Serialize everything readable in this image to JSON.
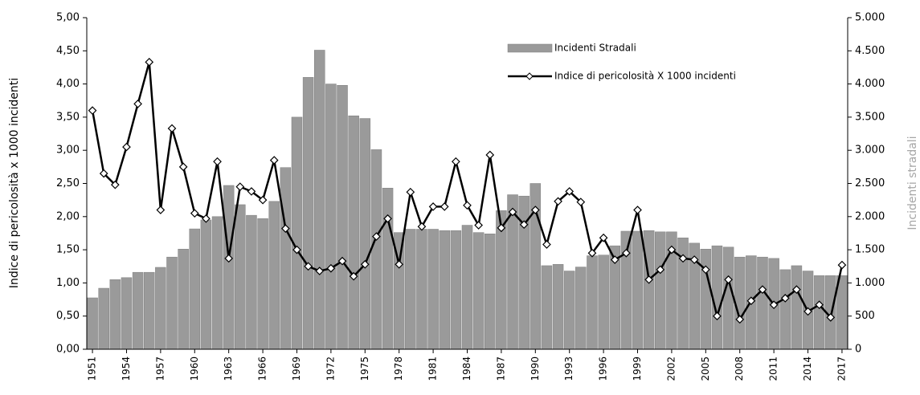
{
  "chart_data": {
    "type": "combo",
    "y_label": "Indice di pericolosità x 1000 incidenti",
    "y2_label": "Incidenti stradali",
    "x": [
      1951,
      1952,
      1953,
      1954,
      1955,
      1956,
      1957,
      1958,
      1959,
      1960,
      1961,
      1962,
      1963,
      1964,
      1965,
      1966,
      1967,
      1968,
      1969,
      1970,
      1971,
      1972,
      1973,
      1974,
      1975,
      1976,
      1977,
      1978,
      1979,
      1980,
      1981,
      1982,
      1983,
      1984,
      1985,
      1986,
      1987,
      1988,
      1989,
      1990,
      1991,
      1992,
      1993,
      1994,
      1995,
      1996,
      1997,
      1998,
      1999,
      2000,
      2001,
      2002,
      2003,
      2004,
      2005,
      2006,
      2007,
      2008,
      2009,
      2010,
      2011,
      2012,
      2013,
      2014,
      2015,
      2016,
      2017
    ],
    "xlim": [
      1950.5,
      2017.5
    ],
    "xticks": [
      1951,
      1954,
      1957,
      1960,
      1963,
      1966,
      1969,
      1972,
      1975,
      1978,
      1981,
      1984,
      1987,
      1990,
      1993,
      1996,
      1999,
      2002,
      2005,
      2008,
      2011,
      2014,
      2017
    ],
    "ylim": [
      0,
      5
    ],
    "yticks": [
      {
        "value": 0,
        "label": "0,00"
      },
      {
        "value": 0.5,
        "label": "0,50"
      },
      {
        "value": 1,
        "label": "1,00"
      },
      {
        "value": 1.5,
        "label": "1,50"
      },
      {
        "value": 2,
        "label": "2,00"
      },
      {
        "value": 2.5,
        "label": "2,50"
      },
      {
        "value": 3,
        "label": "3,00"
      },
      {
        "value": 3.5,
        "label": "3,50"
      },
      {
        "value": 4,
        "label": "4,00"
      },
      {
        "value": 4.5,
        "label": "4,50"
      },
      {
        "value": 5,
        "label": "5,00"
      }
    ],
    "y2lim": [
      0,
      5000
    ],
    "y2ticks": [
      0,
      500,
      {
        "value": 1000,
        "label": "1.000"
      },
      {
        "value": 1500,
        "label": "1.500"
      },
      {
        "value": 2000,
        "label": "2.000"
      },
      {
        "value": 2500,
        "label": "2.500"
      },
      {
        "value": 3000,
        "label": "3.000"
      },
      {
        "value": 3500,
        "label": "3.500"
      },
      {
        "value": 4000,
        "label": "4.000"
      },
      {
        "value": 4500,
        "label": "4.500"
      },
      {
        "value": 5000,
        "label": "5.000"
      }
    ],
    "legend": "top-right",
    "series": [
      {
        "name": "Incidenti Stradali",
        "type": "bar",
        "axis": "y2",
        "color": "#9a9a9a",
        "values": [
          775,
          920,
          1050,
          1080,
          1160,
          1160,
          1235,
          1390,
          1510,
          1815,
          1950,
          2000,
          2470,
          2180,
          2020,
          1970,
          2230,
          2740,
          3500,
          4100,
          4510,
          4000,
          3980,
          3520,
          3480,
          3010,
          2430,
          1760,
          1810,
          1810,
          1810,
          1790,
          1790,
          1870,
          1760,
          1740,
          2090,
          2330,
          2310,
          2500,
          1260,
          1280,
          1180,
          1240,
          1410,
          1420,
          1560,
          1780,
          1780,
          1790,
          1770,
          1770,
          1680,
          1600,
          1510,
          1560,
          1540,
          1390,
          1410,
          1390,
          1370,
          1200,
          1260,
          1180,
          1110,
          1110,
          1110
        ]
      },
      {
        "name": "Indice di pericolosità X 1000 incidenti",
        "type": "line",
        "color": "#000000",
        "values": [
          3.6,
          2.65,
          2.48,
          3.05,
          3.7,
          4.33,
          2.1,
          3.33,
          2.75,
          2.05,
          1.97,
          2.83,
          1.37,
          2.45,
          2.38,
          2.25,
          2.85,
          1.82,
          1.5,
          1.25,
          1.18,
          1.22,
          1.33,
          1.1,
          1.28,
          1.7,
          1.97,
          1.28,
          2.37,
          1.85,
          2.15,
          2.15,
          2.83,
          2.17,
          1.87,
          2.93,
          1.83,
          2.07,
          1.88,
          2.1,
          1.58,
          2.23,
          2.38,
          2.22,
          1.45,
          1.68,
          1.35,
          1.45,
          2.1,
          1.05,
          1.2,
          1.5,
          1.37,
          1.35,
          1.2,
          0.5,
          1.05,
          0.45,
          0.73,
          0.9,
          0.67,
          0.77,
          0.9,
          0.57,
          0.67,
          0.48,
          1.27
        ]
      }
    ]
  }
}
